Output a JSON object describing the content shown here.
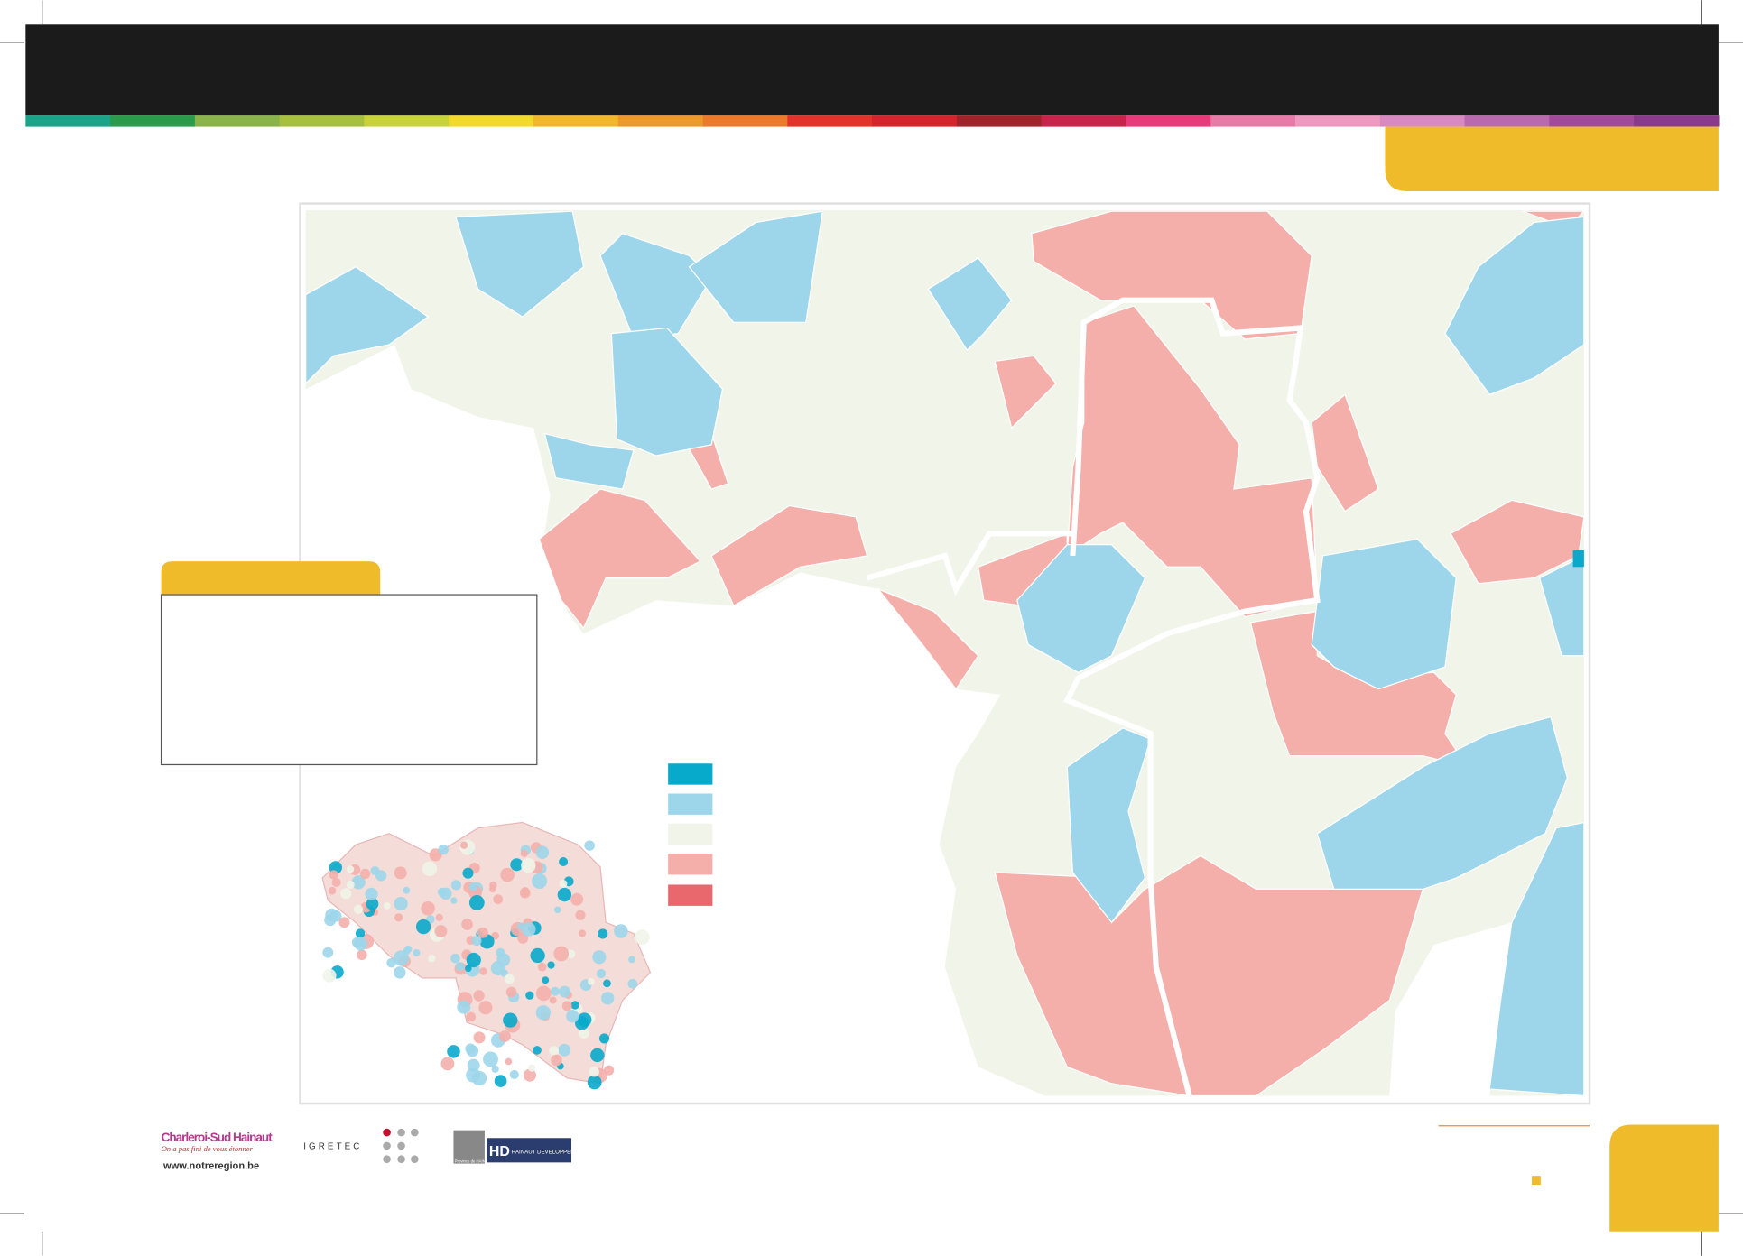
{
  "footer": {
    "charleroi": {
      "name": "Charleroi-Sud Hainaut",
      "tagline": "On a pas fini de vous étonner",
      "url": "www.notreregion.be"
    },
    "igretec": "IGRETEC",
    "province": "Province de HAINAUT",
    "hd": {
      "mark": "HD",
      "name": "HAINAUT DEVELOPPEMENT"
    }
  }
}
